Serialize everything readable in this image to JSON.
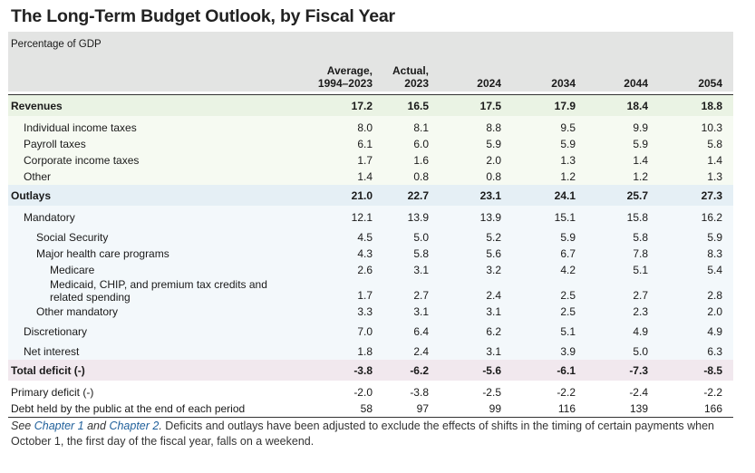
{
  "title": "The Long-Term Budget Outlook, by Fiscal Year",
  "unit_label": "Percentage of GDP",
  "columns": [
    {
      "line1": "Average,",
      "line2": "1994–2023"
    },
    {
      "line1": "Actual,",
      "line2": "2023"
    },
    {
      "line1": "",
      "line2": "2024"
    },
    {
      "line1": "",
      "line2": "2034"
    },
    {
      "line1": "",
      "line2": "2044"
    },
    {
      "line1": "",
      "line2": "2054"
    }
  ],
  "rows": {
    "revenues": {
      "label": "Revenues",
      "values": [
        "17.2",
        "16.5",
        "17.5",
        "17.9",
        "18.4",
        "18.8"
      ]
    },
    "individual": {
      "label": "Individual income taxes",
      "values": [
        "8.0",
        "8.1",
        "8.8",
        "9.5",
        "9.9",
        "10.3"
      ]
    },
    "payroll": {
      "label": "Payroll taxes",
      "values": [
        "6.1",
        "6.0",
        "5.9",
        "5.9",
        "5.9",
        "5.8"
      ]
    },
    "corporate": {
      "label": "Corporate income taxes",
      "values": [
        "1.7",
        "1.6",
        "2.0",
        "1.3",
        "1.4",
        "1.4"
      ]
    },
    "other_rev": {
      "label": "Other",
      "values": [
        "1.4",
        "0.8",
        "0.8",
        "1.2",
        "1.2",
        "1.3"
      ]
    },
    "outlays": {
      "label": "Outlays",
      "values": [
        "21.0",
        "22.7",
        "23.1",
        "24.1",
        "25.7",
        "27.3"
      ]
    },
    "mandatory": {
      "label": "Mandatory",
      "values": [
        "12.1",
        "13.9",
        "13.9",
        "15.1",
        "15.8",
        "16.2"
      ]
    },
    "social_security": {
      "label": "Social Security",
      "values": [
        "4.5",
        "5.0",
        "5.2",
        "5.9",
        "5.8",
        "5.9"
      ]
    },
    "health": {
      "label": "Major health care programs",
      "values": [
        "4.3",
        "5.8",
        "5.6",
        "6.7",
        "7.8",
        "8.3"
      ]
    },
    "medicare": {
      "label": "Medicare",
      "values": [
        "2.6",
        "3.1",
        "3.2",
        "4.2",
        "5.1",
        "5.4"
      ]
    },
    "medicaid": {
      "label_line1": "Medicaid, CHIP, and premium tax credits and",
      "label_line2": "related spending",
      "values": [
        "1.7",
        "2.7",
        "2.4",
        "2.5",
        "2.7",
        "2.8"
      ]
    },
    "other_mandatory": {
      "label": "Other mandatory",
      "values": [
        "3.3",
        "3.1",
        "3.1",
        "2.5",
        "2.3",
        "2.0"
      ]
    },
    "discretionary": {
      "label": "Discretionary",
      "values": [
        "7.0",
        "6.4",
        "6.2",
        "5.1",
        "4.9",
        "4.9"
      ]
    },
    "net_interest": {
      "label": "Net interest",
      "values": [
        "1.8",
        "2.4",
        "3.1",
        "3.9",
        "5.0",
        "6.3"
      ]
    },
    "total_deficit": {
      "label": "Total deficit (-)",
      "values": [
        "-3.8",
        "-6.2",
        "-5.6",
        "-6.1",
        "-7.3",
        "-8.5"
      ]
    },
    "primary_deficit": {
      "label": "Primary deficit (-)",
      "values": [
        "-2.0",
        "-3.8",
        "-2.5",
        "-2.2",
        "-2.4",
        "-2.2"
      ]
    },
    "debt": {
      "label": "Debt held by the public at the end of each period",
      "values": [
        "58",
        "97",
        "99",
        "116",
        "139",
        "166"
      ]
    }
  },
  "footnote": {
    "see": "See ",
    "link1": "Chapter 1",
    "and": " and ",
    "link2": "Chapter 2",
    "period": ".",
    "text": " Deficits and outlays have been adjusted to exclude the effects of shifts in the timing of certain payments when October 1, the first day of the fiscal year, falls on a weekend."
  }
}
